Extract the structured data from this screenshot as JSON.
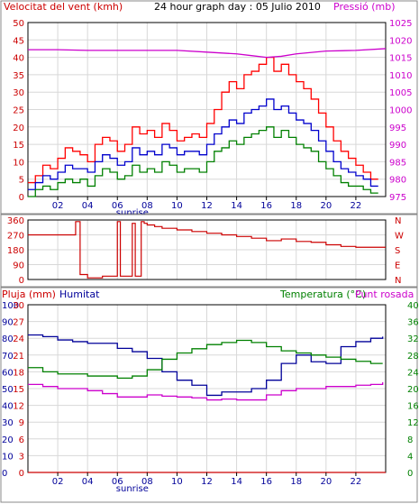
{
  "chart_data": [
    {
      "type": "line",
      "panel": "wind",
      "title": "24 hour graph day : 05 Julio 2010",
      "ylabel_left": "Velocitat del vent (kmh)",
      "ylabel_right": "Pressió (mb)",
      "ylim_left": [
        0,
        50
      ],
      "yticks_left": [
        0,
        5,
        10,
        15,
        20,
        25,
        30,
        35,
        40,
        45,
        50
      ],
      "ylim_right": [
        975,
        1025
      ],
      "yticks_right": [
        975,
        980,
        985,
        990,
        995,
        1000,
        1005,
        1010,
        1015,
        1020,
        1025
      ],
      "xlim": [
        0,
        24
      ],
      "xtick_labels": [
        "02",
        "04",
        "06",
        "08",
        "10",
        "12",
        "14",
        "16",
        "18",
        "20",
        "22"
      ],
      "xtick_values": [
        2,
        4,
        6,
        8,
        10,
        12,
        14,
        16,
        18,
        20,
        22
      ],
      "sunrise_label": "sunrise",
      "sunrise_hour": 6.4,
      "grid": true,
      "series": [
        {
          "name": "Gust",
          "color": "#ff0000",
          "axis": "left",
          "x": [
            0,
            0.5,
            1,
            1.5,
            2,
            2.5,
            3,
            3.5,
            4,
            4.5,
            5,
            5.5,
            6,
            6.5,
            7,
            7.5,
            8,
            8.5,
            9,
            9.5,
            10,
            10.5,
            11,
            11.5,
            12,
            12.5,
            13,
            13.5,
            14,
            14.5,
            15,
            15.5,
            16,
            16.5,
            17,
            17.5,
            18,
            18.5,
            19,
            19.5,
            20,
            20.5,
            21,
            21.5,
            22,
            22.5,
            23,
            23.5
          ],
          "values": [
            4,
            6,
            9,
            8,
            11,
            14,
            13,
            12,
            10,
            15,
            17,
            16,
            13,
            15,
            20,
            18,
            19,
            17,
            21,
            19,
            16,
            17,
            18,
            17,
            21,
            25,
            30,
            33,
            31,
            35,
            36,
            38,
            40,
            36,
            38,
            35,
            33,
            31,
            28,
            24,
            20,
            16,
            13,
            11,
            9,
            7,
            5,
            5
          ]
        },
        {
          "name": "Average",
          "color": "#0000cc",
          "axis": "left",
          "x": [
            0,
            0.5,
            1,
            1.5,
            2,
            2.5,
            3,
            3.5,
            4,
            4.5,
            5,
            5.5,
            6,
            6.5,
            7,
            7.5,
            8,
            8.5,
            9,
            9.5,
            10,
            10.5,
            11,
            11.5,
            12,
            12.5,
            13,
            13.5,
            14,
            14.5,
            15,
            15.5,
            16,
            16.5,
            17,
            17.5,
            18,
            18.5,
            19,
            19.5,
            20,
            20.5,
            21,
            21.5,
            22,
            22.5,
            23,
            23.5
          ],
          "values": [
            2,
            4,
            6,
            5,
            7,
            9,
            8,
            8,
            7,
            10,
            12,
            11,
            9,
            10,
            14,
            12,
            13,
            12,
            15,
            14,
            12,
            13,
            13,
            12,
            15,
            18,
            20,
            22,
            21,
            24,
            25,
            26,
            28,
            25,
            26,
            24,
            22,
            21,
            19,
            16,
            13,
            10,
            8,
            7,
            6,
            5,
            3,
            3
          ]
        },
        {
          "name": "Minimum",
          "color": "#008000",
          "axis": "left",
          "x": [
            0,
            0.5,
            1,
            1.5,
            2,
            2.5,
            3,
            3.5,
            4,
            4.5,
            5,
            5.5,
            6,
            6.5,
            7,
            7.5,
            8,
            8.5,
            9,
            9.5,
            10,
            10.5,
            11,
            11.5,
            12,
            12.5,
            13,
            13.5,
            14,
            14.5,
            15,
            15.5,
            16,
            16.5,
            17,
            17.5,
            18,
            18.5,
            19,
            19.5,
            20,
            20.5,
            21,
            21.5,
            22,
            22.5,
            23,
            23.5
          ],
          "values": [
            0,
            2,
            3,
            2,
            4,
            5,
            4,
            5,
            3,
            6,
            8,
            7,
            5,
            6,
            9,
            7,
            8,
            7,
            10,
            9,
            7,
            8,
            8,
            7,
            10,
            13,
            14,
            16,
            15,
            17,
            18,
            19,
            20,
            17,
            19,
            17,
            15,
            14,
            13,
            10,
            8,
            6,
            4,
            3,
            3,
            2,
            1,
            1
          ]
        },
        {
          "name": "Pressure",
          "color": "#cc00cc",
          "axis": "right",
          "x": [
            0,
            2,
            4,
            6,
            8,
            10,
            12,
            14,
            15,
            16,
            17,
            18,
            20,
            22,
            24
          ],
          "values": [
            1017.2,
            1017.2,
            1017,
            1017,
            1017,
            1017,
            1016.5,
            1016,
            1015.5,
            1015,
            1015.3,
            1016,
            1016.8,
            1017,
            1017.5
          ]
        }
      ]
    },
    {
      "type": "line",
      "panel": "direction",
      "ylim": [
        0,
        360
      ],
      "yticks_left": [
        0,
        90,
        180,
        270,
        360
      ],
      "yticks_right": [
        "N",
        "W",
        "S",
        "E",
        "N"
      ],
      "xlim": [
        0,
        24
      ],
      "series": [
        {
          "name": "Wind direction",
          "color": "#cc0000",
          "x": [
            0,
            2,
            3,
            3.2,
            3.5,
            4,
            5,
            5.8,
            6,
            6.2,
            6.8,
            7,
            7.2,
            7.6,
            7.8,
            8,
            8.5,
            9,
            10,
            11,
            12,
            13,
            14,
            15,
            16,
            17,
            18,
            19,
            20,
            21,
            22,
            23,
            24
          ],
          "values": [
            270,
            270,
            270,
            350,
            30,
            10,
            20,
            20,
            350,
            20,
            20,
            340,
            20,
            350,
            340,
            330,
            320,
            310,
            300,
            290,
            280,
            270,
            260,
            250,
            235,
            245,
            230,
            225,
            210,
            200,
            195,
            195,
            195
          ]
        }
      ]
    },
    {
      "type": "line",
      "panel": "weather",
      "ylabel_left_1": "Pluja (mm)",
      "ylabel_left_2": "Humitat",
      "ylabel_right_1": "Temperatura (°C)",
      "ylabel_right_2": "Punt rosada",
      "ylim_left_rain": [
        0,
        30
      ],
      "yticks_left_rain": [
        0,
        3,
        6,
        9,
        12,
        15,
        18,
        21,
        24,
        27,
        30
      ],
      "ylim_left_humidity": [
        0,
        100
      ],
      "yticks_left_humidity": [
        0,
        10,
        20,
        30,
        40,
        50,
        60,
        70,
        80,
        90,
        100
      ],
      "ylim_right": [
        0,
        40
      ],
      "yticks_right": [
        0,
        4,
        8,
        12,
        16,
        20,
        24,
        28,
        32,
        36,
        40
      ],
      "xlim": [
        0,
        24
      ],
      "xtick_labels": [
        "02",
        "04",
        "06",
        "08",
        "10",
        "12",
        "14",
        "16",
        "18",
        "20",
        "22"
      ],
      "xtick_values": [
        2,
        4,
        6,
        8,
        10,
        12,
        14,
        16,
        18,
        20,
        22
      ],
      "sunrise_label": "sunrise",
      "sunrise_hour": 6.4,
      "series": [
        {
          "name": "Humitat",
          "color": "#000099",
          "axis": "humidity",
          "x": [
            0,
            1,
            2,
            3,
            4,
            5,
            6,
            7,
            8,
            9,
            10,
            11,
            12,
            13,
            14,
            15,
            16,
            17,
            18,
            19,
            20,
            21,
            22,
            23,
            23.8
          ],
          "values": [
            82,
            81,
            79,
            78,
            77,
            77,
            74,
            72,
            68,
            60,
            55,
            52,
            46,
            48,
            48,
            50,
            55,
            65,
            70,
            66,
            65,
            75,
            78,
            80,
            81
          ]
        },
        {
          "name": "Temperatura",
          "color": "#008000",
          "axis": "right",
          "x": [
            0,
            1,
            2,
            3,
            4,
            5,
            6,
            7,
            8,
            9,
            10,
            11,
            12,
            13,
            14,
            15,
            16,
            17,
            18,
            19,
            20,
            21,
            22,
            23,
            23.8
          ],
          "values": [
            25,
            24,
            23.5,
            23.5,
            23,
            23,
            22.5,
            23,
            24.5,
            27,
            28.5,
            29.5,
            30.5,
            31,
            31.5,
            31,
            30,
            29,
            28.5,
            28,
            27.5,
            27,
            26.5,
            26,
            26
          ]
        },
        {
          "name": "Punt rosada",
          "color": "#cc00cc",
          "axis": "right",
          "x": [
            0,
            1,
            2,
            3,
            4,
            5,
            6,
            7,
            8,
            9,
            10,
            11,
            12,
            13,
            14,
            15,
            16,
            17,
            18,
            19,
            20,
            21,
            22,
            23,
            23.8
          ],
          "values": [
            21,
            20.5,
            20,
            20,
            19.5,
            18.8,
            18,
            18,
            18.5,
            18.2,
            18,
            17.8,
            17.3,
            17.5,
            17.3,
            17.3,
            18.5,
            19.5,
            20,
            20,
            20.5,
            20.5,
            20.8,
            21,
            21.5
          ]
        },
        {
          "name": "Pluja",
          "color": "#cc0000",
          "axis": "rain",
          "x": [
            0,
            24
          ],
          "values": [
            0,
            0
          ]
        }
      ]
    }
  ]
}
